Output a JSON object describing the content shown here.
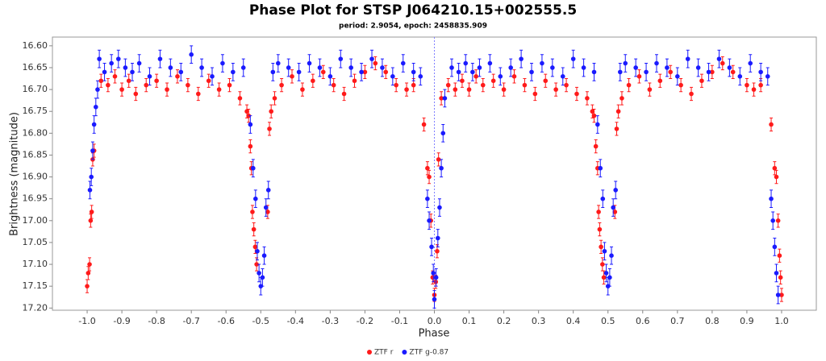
{
  "chart_data": {
    "type": "scatter",
    "title": "Phase Plot for STSP J064210.15+002555.5",
    "subtitle": "period: 2.9054, epoch: 2458835.909",
    "x_label": "Phase",
    "y_label": "Brightness (magnitude)",
    "xlim": [
      -1.1,
      1.1
    ],
    "ylim": [
      16.58,
      17.205
    ],
    "y_inverted": true,
    "vline": 0,
    "xticks": [
      {
        "value": -1.0,
        "label": "-1.0"
      },
      -0.9,
      -0.8,
      -0.7,
      -0.6,
      -0.5,
      -0.4,
      -0.3,
      -0.2,
      -0.1,
      {
        "value": 0.0,
        "label": "0.0"
      },
      0.1,
      0.2,
      0.3,
      0.4,
      0.5,
      0.6,
      0.7,
      0.8,
      0.9,
      {
        "value": 1.0,
        "label": "1.0"
      }
    ],
    "yticks": [
      {
        "value": 16.6,
        "label": "16.60"
      },
      16.65,
      {
        "value": 16.7,
        "label": "16.70"
      },
      16.75,
      {
        "value": 16.8,
        "label": "16.80"
      },
      16.85,
      {
        "value": 16.9,
        "label": "16.90"
      },
      16.95,
      {
        "value": 17.0,
        "label": "17.00"
      },
      17.05,
      {
        "value": 17.1,
        "label": "17.10"
      },
      17.15,
      {
        "value": 17.2,
        "label": "17.20"
      }
    ],
    "legend": "bottom",
    "series": [
      {
        "name": "ZTF r",
        "color": "#ff1a1a",
        "error": 0.015,
        "x": [
          -1.0,
          -0.997,
          -0.993,
          -0.99,
          -0.987,
          -0.984,
          -0.98,
          -0.96,
          -0.94,
          -0.92,
          -0.9,
          -0.88,
          -0.86,
          -0.83,
          -0.8,
          -0.77,
          -0.74,
          -0.71,
          -0.68,
          -0.65,
          -0.62,
          -0.59,
          -0.56,
          -0.54,
          -0.535,
          -0.53,
          -0.527,
          -0.524,
          -0.52,
          -0.516,
          -0.512,
          -0.48,
          -0.475,
          -0.47,
          -0.46,
          -0.44,
          -0.41,
          -0.38,
          -0.35,
          -0.32,
          -0.29,
          -0.26,
          -0.23,
          -0.2,
          -0.17,
          -0.14,
          -0.11,
          -0.08,
          -0.06,
          -0.03,
          -0.02,
          -0.015,
          -0.01,
          -0.005,
          0.0,
          0.004,
          0.008,
          0.012,
          0.02,
          0.04,
          0.06,
          0.08,
          0.1,
          0.12,
          0.14,
          0.17,
          0.2,
          0.23,
          0.26,
          0.29,
          0.32,
          0.35,
          0.38,
          0.41,
          0.44,
          0.455,
          0.46,
          0.465,
          0.47,
          0.473,
          0.476,
          0.48,
          0.484,
          0.488,
          0.52,
          0.525,
          0.53,
          0.54,
          0.56,
          0.59,
          0.62,
          0.65,
          0.68,
          0.71,
          0.74,
          0.77,
          0.8,
          0.83,
          0.86,
          0.9,
          0.92,
          0.94,
          0.97,
          0.98,
          0.985,
          0.99,
          0.994,
          0.997,
          1.0
        ],
        "values": [
          17.15,
          17.12,
          17.1,
          17.0,
          16.98,
          16.86,
          16.84,
          16.68,
          16.69,
          16.67,
          16.7,
          16.68,
          16.71,
          16.69,
          16.68,
          16.7,
          16.67,
          16.69,
          16.71,
          16.68,
          16.7,
          16.69,
          16.72,
          16.75,
          16.76,
          16.83,
          16.88,
          16.98,
          17.02,
          17.06,
          17.1,
          16.98,
          16.79,
          16.75,
          16.72,
          16.69,
          16.67,
          16.7,
          16.68,
          16.66,
          16.69,
          16.71,
          16.68,
          16.66,
          16.64,
          16.66,
          16.69,
          16.7,
          16.69,
          16.78,
          16.88,
          16.9,
          17.0,
          17.13,
          17.17,
          17.14,
          17.07,
          16.86,
          16.72,
          16.69,
          16.7,
          16.68,
          16.7,
          16.67,
          16.69,
          16.68,
          16.7,
          16.67,
          16.69,
          16.71,
          16.68,
          16.7,
          16.69,
          16.71,
          16.72,
          16.75,
          16.76,
          16.83,
          16.88,
          16.98,
          17.02,
          17.06,
          17.1,
          17.13,
          16.98,
          16.79,
          16.75,
          16.72,
          16.69,
          16.67,
          16.7,
          16.68,
          16.66,
          16.69,
          16.71,
          16.68,
          16.66,
          16.64,
          16.66,
          16.69,
          16.7,
          16.69,
          16.78,
          16.88,
          16.9,
          17.0,
          17.08,
          17.13,
          17.17
        ]
      },
      {
        "name": "ZTF g-0.87",
        "color": "#1a1aff",
        "error": 0.02,
        "x": [
          -0.992,
          -0.988,
          -0.984,
          -0.98,
          -0.975,
          -0.97,
          -0.965,
          -0.95,
          -0.93,
          -0.91,
          -0.89,
          -0.87,
          -0.85,
          -0.82,
          -0.79,
          -0.76,
          -0.73,
          -0.7,
          -0.67,
          -0.64,
          -0.61,
          -0.58,
          -0.55,
          -0.53,
          -0.522,
          -0.515,
          -0.51,
          -0.505,
          -0.5,
          -0.495,
          -0.49,
          -0.485,
          -0.478,
          -0.465,
          -0.45,
          -0.42,
          -0.39,
          -0.36,
          -0.33,
          -0.3,
          -0.27,
          -0.24,
          -0.21,
          -0.18,
          -0.15,
          -0.12,
          -0.09,
          -0.06,
          -0.04,
          -0.02,
          -0.015,
          -0.008,
          -0.003,
          0.0,
          0.005,
          0.01,
          0.015,
          0.02,
          0.025,
          0.03,
          0.05,
          0.07,
          0.09,
          0.11,
          0.13,
          0.16,
          0.19,
          0.22,
          0.25,
          0.28,
          0.31,
          0.34,
          0.37,
          0.4,
          0.43,
          0.46,
          0.47,
          0.478,
          0.485,
          0.49,
          0.495,
          0.5,
          0.505,
          0.51,
          0.515,
          0.522,
          0.535,
          0.55,
          0.58,
          0.61,
          0.64,
          0.67,
          0.7,
          0.73,
          0.76,
          0.79,
          0.82,
          0.85,
          0.88,
          0.91,
          0.94,
          0.96,
          0.97,
          0.975,
          0.98,
          0.985,
          0.99
        ],
        "values": [
          16.93,
          16.9,
          16.84,
          16.78,
          16.74,
          16.7,
          16.63,
          16.66,
          16.64,
          16.63,
          16.65,
          16.66,
          16.64,
          16.67,
          16.63,
          16.65,
          16.66,
          16.62,
          16.65,
          16.67,
          16.64,
          16.66,
          16.65,
          16.78,
          16.88,
          16.95,
          17.07,
          17.12,
          17.15,
          17.13,
          17.08,
          16.97,
          16.93,
          16.66,
          16.64,
          16.65,
          16.66,
          16.64,
          16.65,
          16.67,
          16.63,
          16.65,
          16.66,
          16.63,
          16.65,
          16.67,
          16.64,
          16.66,
          16.67,
          16.95,
          17.0,
          17.06,
          17.12,
          17.18,
          17.13,
          17.04,
          16.97,
          16.88,
          16.8,
          16.72,
          16.65,
          16.66,
          16.64,
          16.66,
          16.65,
          16.64,
          16.67,
          16.65,
          16.63,
          16.66,
          16.64,
          16.65,
          16.67,
          16.63,
          16.65,
          16.66,
          16.78,
          16.88,
          16.95,
          17.07,
          17.12,
          17.15,
          17.13,
          17.08,
          16.97,
          16.93,
          16.66,
          16.64,
          16.65,
          16.66,
          16.64,
          16.65,
          16.67,
          16.63,
          16.65,
          16.66,
          16.63,
          16.65,
          16.67,
          16.64,
          16.66,
          16.67,
          16.95,
          17.0,
          17.06,
          17.12,
          17.17
        ]
      }
    ]
  }
}
